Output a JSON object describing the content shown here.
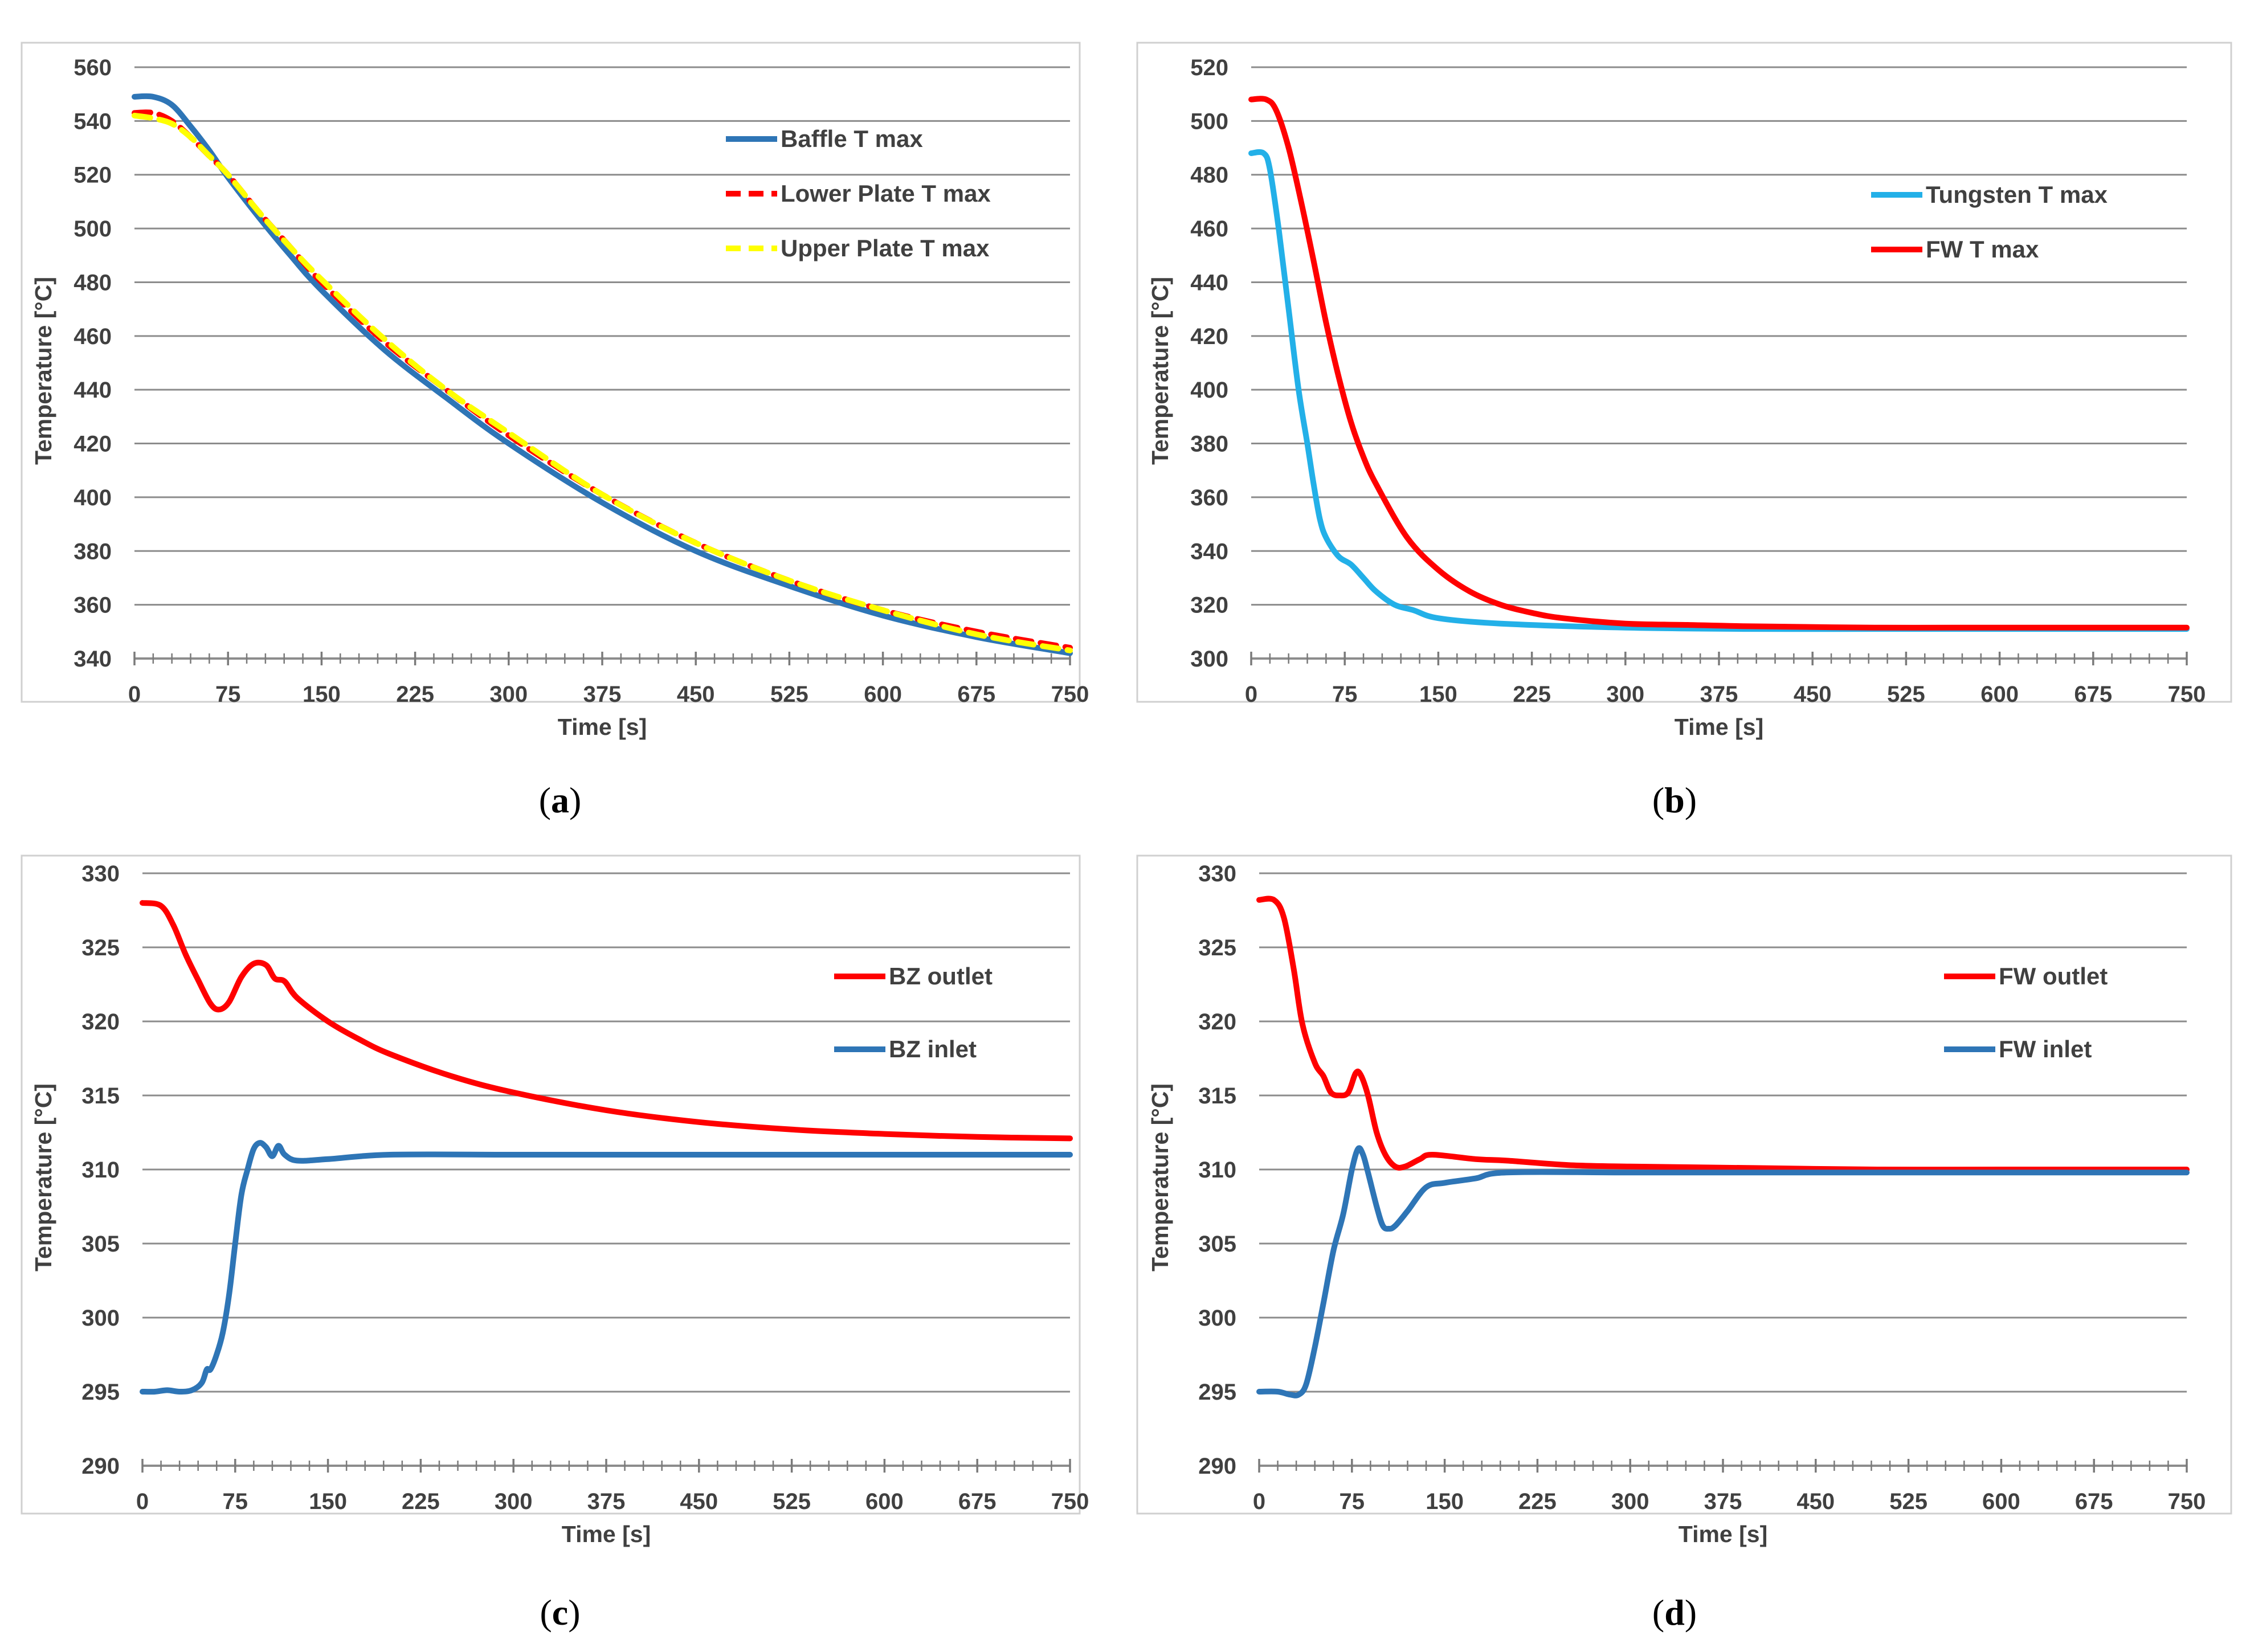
{
  "chart_data": [
    {
      "id": "a",
      "type": "line",
      "caption_letter": "a",
      "title": "",
      "xlabel": "Time [s]",
      "ylabel": "Temperature [°C]",
      "xlim": [
        0,
        750
      ],
      "ylim": [
        340,
        560
      ],
      "xticks": [
        0,
        75,
        150,
        225,
        300,
        375,
        450,
        525,
        600,
        675,
        750
      ],
      "xtick_labels": [
        "0",
        "75",
        "150",
        "225",
        "300",
        "375",
        "450",
        "525",
        "600",
        "675",
        "750"
      ],
      "yticks": [
        340,
        360,
        380,
        400,
        420,
        440,
        460,
        480,
        500,
        520,
        540,
        560
      ],
      "ytick_labels": [
        "340",
        "360",
        "380",
        "400",
        "420",
        "440",
        "460",
        "480",
        "500",
        "520",
        "540",
        "560"
      ],
      "grid": true,
      "legend_position": "top-right",
      "series": [
        {
          "name": "Baffle T max",
          "color": "#2e75b6",
          "dash": "solid",
          "points": [
            [
              0,
              549
            ],
            [
              15,
              549
            ],
            [
              30,
              546
            ],
            [
              45,
              538
            ],
            [
              60,
              529
            ],
            [
              75,
              519
            ],
            [
              100,
              504
            ],
            [
              125,
              490
            ],
            [
              150,
              477
            ],
            [
              200,
              455
            ],
            [
              250,
              437
            ],
            [
              300,
              420
            ],
            [
              375,
              398
            ],
            [
              450,
              380
            ],
            [
              525,
              367
            ],
            [
              600,
              356
            ],
            [
              675,
              348
            ],
            [
              750,
              342
            ]
          ]
        },
        {
          "name": "Lower Plate T max",
          "color": "#ff0000",
          "dash": "dashed",
          "points": [
            [
              0,
              543
            ],
            [
              15,
              543
            ],
            [
              30,
              540
            ],
            [
              45,
              534
            ],
            [
              60,
              527
            ],
            [
              75,
              520
            ],
            [
              100,
              506
            ],
            [
              125,
              493
            ],
            [
              150,
              480
            ],
            [
              200,
              458
            ],
            [
              250,
              440
            ],
            [
              300,
              423
            ],
            [
              375,
              401
            ],
            [
              450,
              383
            ],
            [
              525,
              369
            ],
            [
              600,
              358
            ],
            [
              675,
              350
            ],
            [
              750,
              344
            ]
          ]
        },
        {
          "name": "Upper Plate T max",
          "color": "#ffff00",
          "dash": "dashed",
          "points": [
            [
              0,
              542
            ],
            [
              15,
              541
            ],
            [
              30,
              539
            ],
            [
              45,
              534
            ],
            [
              60,
              527
            ],
            [
              75,
              520
            ],
            [
              100,
              506
            ],
            [
              125,
              493
            ],
            [
              150,
              481
            ],
            [
              200,
              459
            ],
            [
              250,
              440
            ],
            [
              300,
              424
            ],
            [
              375,
              401
            ],
            [
              450,
              383
            ],
            [
              525,
              369
            ],
            [
              600,
              358
            ],
            [
              675,
              349
            ],
            [
              750,
              343
            ]
          ]
        }
      ]
    },
    {
      "id": "b",
      "type": "line",
      "caption_letter": "b",
      "title": "",
      "xlabel": "Time [s]",
      "ylabel": "Temperature [°C]",
      "xlim": [
        0,
        750
      ],
      "ylim": [
        300,
        520
      ],
      "xticks": [
        0,
        75,
        150,
        225,
        300,
        375,
        450,
        525,
        600,
        675,
        750
      ],
      "xtick_labels": [
        "0",
        "75",
        "150",
        "225",
        "300",
        "375",
        "450",
        "525",
        "600",
        "675",
        "750"
      ],
      "yticks": [
        300,
        320,
        340,
        360,
        380,
        400,
        420,
        440,
        460,
        480,
        500,
        520
      ],
      "ytick_labels": [
        "300",
        "320",
        "340",
        "360",
        "380",
        "400",
        "420",
        "440",
        "460",
        "480",
        "500",
        "520"
      ],
      "grid": true,
      "legend_position": "top-right",
      "series": [
        {
          "name": "Tungsten T max",
          "color": "#23b0e8",
          "dash": "solid",
          "points": [
            [
              0,
              488
            ],
            [
              10,
              488
            ],
            [
              15,
              482
            ],
            [
              22,
              460
            ],
            [
              30,
              430
            ],
            [
              38,
              400
            ],
            [
              45,
              380
            ],
            [
              50,
              365
            ],
            [
              55,
              352
            ],
            [
              60,
              345
            ],
            [
              70,
              338
            ],
            [
              80,
              335
            ],
            [
              90,
              330
            ],
            [
              100,
              325
            ],
            [
              115,
              320
            ],
            [
              130,
              318
            ],
            [
              150,
              315
            ],
            [
              200,
              313
            ],
            [
              300,
              311.5
            ],
            [
              400,
              311
            ],
            [
              500,
              311
            ],
            [
              600,
              311
            ],
            [
              750,
              311
            ]
          ]
        },
        {
          "name": "FW T max",
          "color": "#ff0000",
          "dash": "solid",
          "points": [
            [
              0,
              508
            ],
            [
              12,
              508
            ],
            [
              20,
              504
            ],
            [
              30,
              490
            ],
            [
              40,
              470
            ],
            [
              50,
              448
            ],
            [
              60,
              425
            ],
            [
              70,
              405
            ],
            [
              80,
              388
            ],
            [
              90,
              375
            ],
            [
              100,
              365
            ],
            [
              125,
              345
            ],
            [
              150,
              333
            ],
            [
              175,
              325
            ],
            [
              200,
              320
            ],
            [
              225,
              317
            ],
            [
              250,
              315
            ],
            [
              300,
              313
            ],
            [
              350,
              312.5
            ],
            [
              400,
              312
            ],
            [
              500,
              311.5
            ],
            [
              600,
              311.5
            ],
            [
              750,
              311.5
            ]
          ]
        }
      ]
    },
    {
      "id": "c",
      "type": "line",
      "caption_letter": "c",
      "title": "",
      "xlabel": "Time [s]",
      "ylabel": "Temperature [°C]",
      "xlim": [
        0,
        750
      ],
      "ylim": [
        290,
        330
      ],
      "xticks": [
        0,
        75,
        150,
        225,
        300,
        375,
        450,
        525,
        600,
        675,
        750
      ],
      "xtick_labels": [
        "0",
        "75",
        "150",
        "225",
        "300",
        "375",
        "450",
        "525",
        "600",
        "675",
        "750"
      ],
      "yticks": [
        290,
        295,
        300,
        305,
        310,
        315,
        320,
        325,
        330
      ],
      "ytick_labels": [
        "290",
        "295",
        "300",
        "305",
        "310",
        "315",
        "320",
        "325",
        "330"
      ],
      "grid": true,
      "legend_position": "top-right",
      "series": [
        {
          "name": "BZ outlet",
          "color": "#ff0000",
          "dash": "solid",
          "points": [
            [
              0,
              328
            ],
            [
              15,
              327.8
            ],
            [
              25,
              326.5
            ],
            [
              35,
              324.5
            ],
            [
              45,
              322.8
            ],
            [
              55,
              321.2
            ],
            [
              62,
              320.8
            ],
            [
              70,
              321.3
            ],
            [
              80,
              323
            ],
            [
              90,
              323.9
            ],
            [
              100,
              323.8
            ],
            [
              107,
              322.9
            ],
            [
              115,
              322.7
            ],
            [
              125,
              321.6
            ],
            [
              150,
              320
            ],
            [
              175,
              318.8
            ],
            [
              200,
              317.8
            ],
            [
              250,
              316.3
            ],
            [
              300,
              315.2
            ],
            [
              375,
              314
            ],
            [
              450,
              313.2
            ],
            [
              525,
              312.7
            ],
            [
              600,
              312.4
            ],
            [
              675,
              312.2
            ],
            [
              750,
              312.1
            ]
          ]
        },
        {
          "name": "BZ inlet",
          "color": "#2e75b6",
          "dash": "solid",
          "points": [
            [
              0,
              295
            ],
            [
              10,
              295
            ],
            [
              20,
              295.1
            ],
            [
              30,
              295
            ],
            [
              40,
              295.1
            ],
            [
              48,
              295.6
            ],
            [
              52,
              296.5
            ],
            [
              55,
              296.5
            ],
            [
              60,
              297.5
            ],
            [
              65,
              299
            ],
            [
              70,
              301.5
            ],
            [
              75,
              305
            ],
            [
              80,
              308.3
            ],
            [
              85,
              310
            ],
            [
              90,
              311.4
            ],
            [
              95,
              311.8
            ],
            [
              100,
              311.5
            ],
            [
              105,
              310.9
            ],
            [
              110,
              311.6
            ],
            [
              115,
              311
            ],
            [
              125,
              310.6
            ],
            [
              150,
              310.7
            ],
            [
              200,
              311
            ],
            [
              300,
              311
            ],
            [
              400,
              311
            ],
            [
              500,
              311
            ],
            [
              600,
              311
            ],
            [
              750,
              311
            ]
          ]
        }
      ]
    },
    {
      "id": "d",
      "type": "line",
      "caption_letter": "d",
      "title": "",
      "xlabel": "Time [s]",
      "ylabel": "Temperature [°C]",
      "xlim": [
        0,
        750
      ],
      "ylim": [
        290,
        330
      ],
      "xticks": [
        0,
        75,
        150,
        225,
        300,
        375,
        450,
        525,
        600,
        675,
        750
      ],
      "xtick_labels": [
        "0",
        "75",
        "150",
        "225",
        "300",
        "375",
        "450",
        "525",
        "600",
        "675",
        "750"
      ],
      "yticks": [
        290,
        295,
        300,
        305,
        310,
        315,
        320,
        325,
        330
      ],
      "ytick_labels": [
        "290",
        "295",
        "300",
        "305",
        "310",
        "315",
        "320",
        "325",
        "330"
      ],
      "grid": true,
      "legend_position": "top-right",
      "series": [
        {
          "name": "FW outlet",
          "color": "#ff0000",
          "dash": "solid",
          "points": [
            [
              0,
              328.2
            ],
            [
              12,
              328.2
            ],
            [
              20,
              327
            ],
            [
              28,
              323.5
            ],
            [
              35,
              319.8
            ],
            [
              45,
              317.2
            ],
            [
              52,
              316.3
            ],
            [
              58,
              315.2
            ],
            [
              65,
              315
            ],
            [
              72,
              315.2
            ],
            [
              78,
              316.5
            ],
            [
              82,
              316.4
            ],
            [
              88,
              315
            ],
            [
              95,
              312.5
            ],
            [
              102,
              311
            ],
            [
              110,
              310.2
            ],
            [
              118,
              310.2
            ],
            [
              130,
              310.7
            ],
            [
              140,
              311
            ],
            [
              175,
              310.7
            ],
            [
              200,
              310.6
            ],
            [
              250,
              310.3
            ],
            [
              300,
              310.2
            ],
            [
              400,
              310.1
            ],
            [
              500,
              310
            ],
            [
              600,
              310
            ],
            [
              750,
              310
            ]
          ]
        },
        {
          "name": "FW inlet",
          "color": "#2e75b6",
          "dash": "solid",
          "points": [
            [
              0,
              295
            ],
            [
              15,
              295
            ],
            [
              25,
              294.8
            ],
            [
              32,
              294.8
            ],
            [
              38,
              295.5
            ],
            [
              45,
              298
            ],
            [
              52,
              301
            ],
            [
              60,
              304.5
            ],
            [
              68,
              307
            ],
            [
              75,
              310
            ],
            [
              80,
              311.4
            ],
            [
              84,
              311
            ],
            [
              88,
              309.8
            ],
            [
              95,
              307.5
            ],
            [
              100,
              306.2
            ],
            [
              105,
              306
            ],
            [
              110,
              306.2
            ],
            [
              120,
              307.2
            ],
            [
              135,
              308.8
            ],
            [
              150,
              309.1
            ],
            [
              175,
              309.4
            ],
            [
              200,
              309.8
            ],
            [
              300,
              309.8
            ],
            [
              450,
              309.8
            ],
            [
              600,
              309.8
            ],
            [
              750,
              309.8
            ]
          ]
        }
      ]
    }
  ]
}
